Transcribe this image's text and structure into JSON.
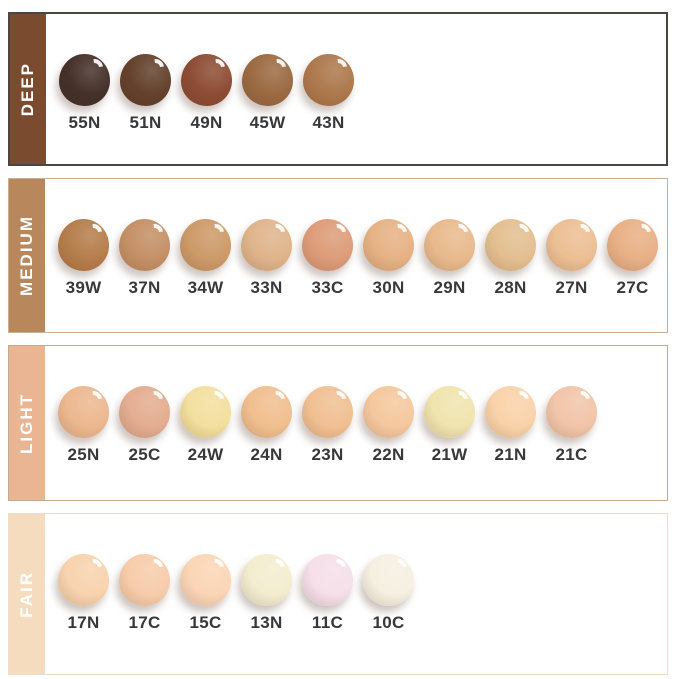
{
  "swatch_label_color": "#38383a",
  "band_text_color": "#ffffff",
  "rows": [
    {
      "label": "DEEP",
      "band_color": "#7b4b2f",
      "border_color": "#4a4642",
      "border_width": 2,
      "swatches": [
        {
          "code": "55N",
          "color": "#453029"
        },
        {
          "code": "51N",
          "color": "#63412c"
        },
        {
          "code": "49N",
          "color": "#8d4c34"
        },
        {
          "code": "45W",
          "color": "#9b6a42"
        },
        {
          "code": "43N",
          "color": "#ad784c"
        }
      ]
    },
    {
      "label": "MEDIUM",
      "band_color": "#b9875c",
      "border_color": "#c9b091",
      "border_width": 1.5,
      "swatches": [
        {
          "code": "39W",
          "color": "#b57d4b"
        },
        {
          "code": "37N",
          "color": "#c49066"
        },
        {
          "code": "34W",
          "color": "#cd9a68"
        },
        {
          "code": "33N",
          "color": "#dfb48b"
        },
        {
          "code": "33C",
          "color": "#dd9c79"
        },
        {
          "code": "30N",
          "color": "#e6b284"
        },
        {
          "code": "29N",
          "color": "#e8ba8d"
        },
        {
          "code": "28N",
          "color": "#e3bf90"
        },
        {
          "code": "27N",
          "color": "#ecbf94"
        },
        {
          "code": "27C",
          "color": "#e8b086"
        }
      ]
    },
    {
      "label": "LIGHT",
      "band_color": "#e9b593",
      "border_color": "#c2ab8f",
      "border_width": 1.5,
      "swatches": [
        {
          "code": "25N",
          "color": "#ecb88f"
        },
        {
          "code": "25C",
          "color": "#e3ad90"
        },
        {
          "code": "24W",
          "color": "#f3df9e"
        },
        {
          "code": "24N",
          "color": "#f1bf8f"
        },
        {
          "code": "23N",
          "color": "#f1c093"
        },
        {
          "code": "22N",
          "color": "#f5c89e"
        },
        {
          "code": "21W",
          "color": "#f0e4af"
        },
        {
          "code": "21N",
          "color": "#f9d2a9"
        },
        {
          "code": "21C",
          "color": "#f1c5a9"
        }
      ]
    },
    {
      "label": "FAIR",
      "band_color": "#f6dcbe",
      "border_color": "#ecdfc9",
      "border_width": 1.5,
      "swatches": [
        {
          "code": "17N",
          "color": "#f8d3ae"
        },
        {
          "code": "17C",
          "color": "#f7ccab"
        },
        {
          "code": "15C",
          "color": "#fbd5b6"
        },
        {
          "code": "13N",
          "color": "#f3edcf"
        },
        {
          "code": "11C",
          "color": "#f6dfe9"
        },
        {
          "code": "10C",
          "color": "#f6f0e1"
        }
      ]
    }
  ],
  "chart_data": {
    "type": "table",
    "legend_position": "left",
    "categories": [
      "DEEP",
      "MEDIUM",
      "LIGHT",
      "FAIR"
    ],
    "series": [
      {
        "name": "DEEP",
        "values": [
          "55N",
          "51N",
          "49N",
          "45W",
          "43N"
        ]
      },
      {
        "name": "MEDIUM",
        "values": [
          "39W",
          "37N",
          "34W",
          "33N",
          "33C",
          "30N",
          "29N",
          "28N",
          "27N",
          "27C"
        ]
      },
      {
        "name": "LIGHT",
        "values": [
          "25N",
          "25C",
          "24W",
          "24N",
          "23N",
          "22N",
          "21W",
          "21N",
          "21C"
        ]
      },
      {
        "name": "FAIR",
        "values": [
          "17N",
          "17C",
          "15C",
          "13N",
          "11C",
          "10C"
        ]
      }
    ]
  }
}
